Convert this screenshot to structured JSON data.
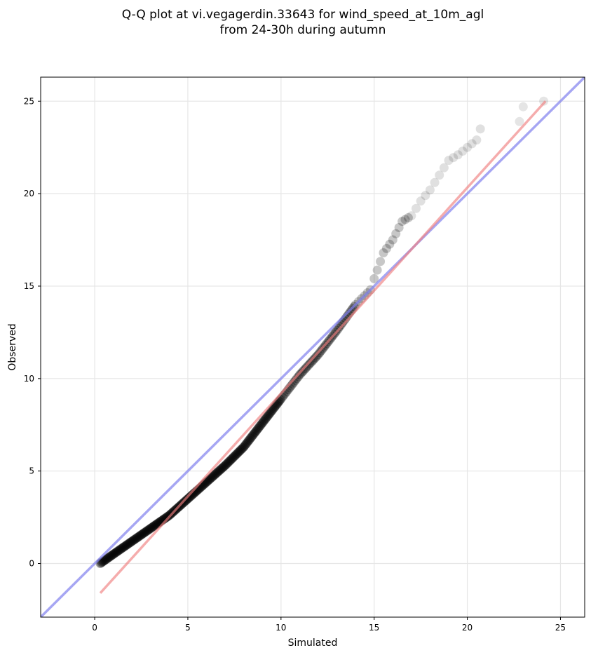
{
  "chart_data": {
    "type": "scatter",
    "title": "Q-Q plot at vi.vegagerdin.33643 for wind_speed_at_10m_agl",
    "subtitle": "from 24-30h during autumn",
    "xlabel": "Simulated",
    "ylabel": "Observed",
    "xlim": [
      -2.9,
      26.3
    ],
    "ylim": [
      -2.9,
      26.3
    ],
    "x_ticks": [
      0,
      5,
      10,
      15,
      20,
      25
    ],
    "y_ticks": [
      0,
      5,
      10,
      15,
      20,
      25
    ],
    "x_tick_labels": [
      "0",
      "5",
      "10",
      "15",
      "20",
      "25"
    ],
    "y_tick_labels": [
      "0",
      "5",
      "10",
      "15",
      "20",
      "25"
    ],
    "grid": true,
    "legend": "none",
    "quantile_curve": {
      "x": [
        0.3,
        1.0,
        2.0,
        3.0,
        4.0,
        5.0,
        6.0,
        7.0,
        8.0,
        9.0,
        10.0,
        11.0,
        12.0,
        13.0,
        14.0,
        14.8,
        15.0,
        15.5,
        16.0,
        16.5,
        17.0,
        17.5,
        18.0,
        18.5,
        19.0,
        19.5,
        20.0,
        20.5,
        20.7
      ],
      "y": [
        0.0,
        0.5,
        1.2,
        1.9,
        2.6,
        3.5,
        4.4,
        5.3,
        6.3,
        7.6,
        8.9,
        10.2,
        11.3,
        12.6,
        14.0,
        14.8,
        15.4,
        16.8,
        17.5,
        18.5,
        18.8,
        19.6,
        20.2,
        21.0,
        21.8,
        22.1,
        22.5,
        22.9,
        23.5
      ]
    },
    "tail_points": {
      "x": [
        22.8,
        23.0,
        24.1
      ],
      "y": [
        23.9,
        24.7,
        25.0
      ]
    },
    "reference_lines": {
      "identity": {
        "color": "#8080ee",
        "x": [
          -2.9,
          26.3
        ],
        "y": [
          -2.9,
          26.3
        ]
      },
      "fit": {
        "color": "#f08080",
        "x": [
          0.3,
          24.2
        ],
        "y": [
          -1.6,
          25.0
        ]
      }
    },
    "marker_color": "#000000"
  }
}
